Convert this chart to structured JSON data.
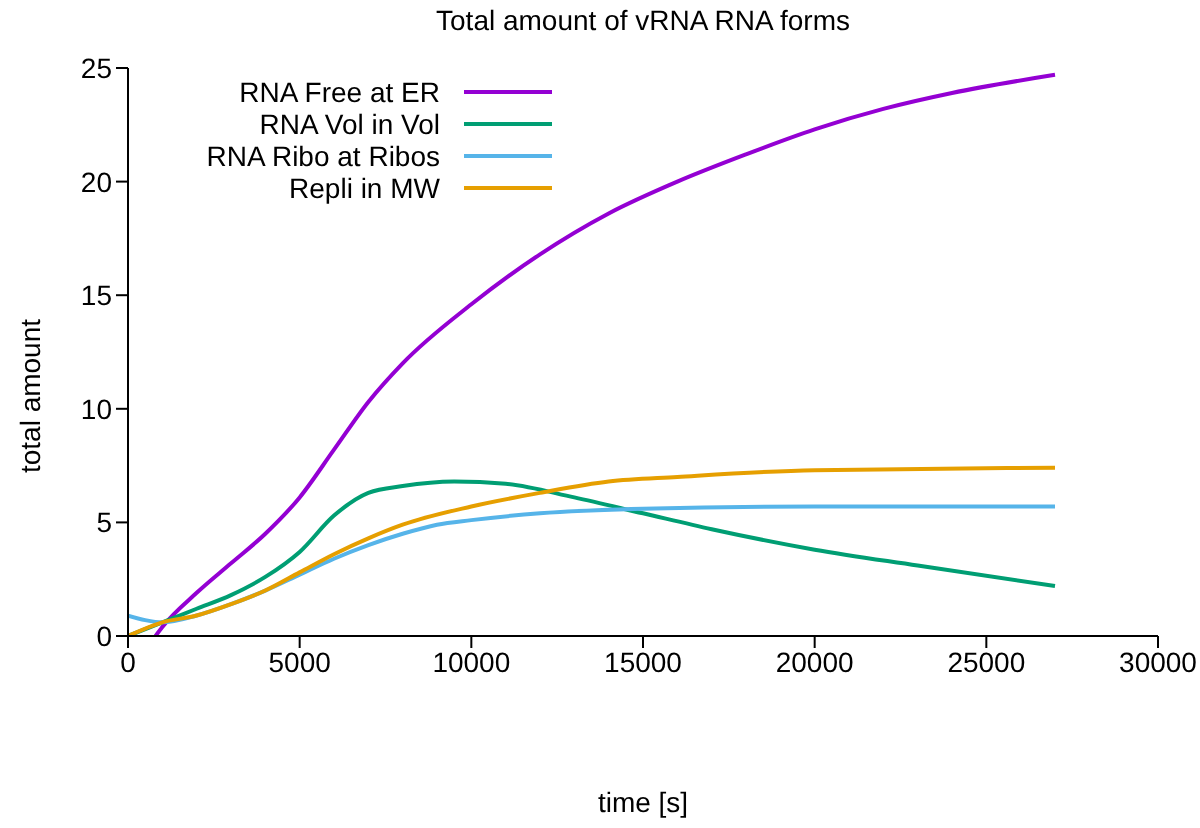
{
  "chart_data": {
    "type": "line",
    "title": "Total amount of vRNA RNA forms",
    "xlabel": "time [s]",
    "ylabel": "total amount",
    "xlim": [
      0,
      30000
    ],
    "xticks": [
      0,
      5000,
      10000,
      15000,
      20000,
      25000,
      30000
    ],
    "ylim": [
      0,
      25
    ],
    "yticks": [
      0,
      5,
      10,
      15,
      20,
      25
    ],
    "grid": false,
    "legend": "top left",
    "marker": "none",
    "line_style": "solid",
    "series": [
      {
        "name": "RNA Free at ER",
        "color": "#9400d3",
        "x": [
          800,
          1000,
          2000,
          3000,
          4000,
          5000,
          6000,
          7000,
          8000,
          10000,
          12000,
          14000,
          16000,
          18000,
          20000,
          22000,
          24000,
          27000
        ],
        "values": [
          0,
          0.4,
          1.9,
          3.2,
          4.5,
          6.1,
          8.2,
          10.3,
          12.0,
          14.6,
          16.8,
          18.6,
          20.0,
          21.2,
          22.3,
          23.2,
          23.9,
          24.7
        ]
      },
      {
        "name": "RNA Vol in Vol",
        "color": "#009e73",
        "x": [
          0,
          1000,
          2000,
          3000,
          4000,
          5000,
          6000,
          7000,
          8000,
          9500,
          11000,
          13000,
          15000,
          17000,
          20000,
          23000,
          27000
        ],
        "values": [
          0,
          0.6,
          1.2,
          1.8,
          2.6,
          3.7,
          5.3,
          6.3,
          6.6,
          6.8,
          6.7,
          6.1,
          5.4,
          4.7,
          3.8,
          3.1,
          2.2
        ]
      },
      {
        "name": "RNA Ribo at Ribos",
        "color": "#56b4e9",
        "x": [
          0,
          500,
          1000,
          2000,
          3000,
          4000,
          5000,
          6000,
          7000,
          8000,
          9000,
          10000,
          12000,
          15000,
          20000,
          27000
        ],
        "values": [
          0.9,
          0.7,
          0.6,
          0.9,
          1.4,
          2.0,
          2.7,
          3.4,
          4.0,
          4.5,
          4.9,
          5.1,
          5.4,
          5.6,
          5.7,
          5.7
        ]
      },
      {
        "name": "Repli in MW",
        "color": "#e69f00",
        "x": [
          0,
          1000,
          2000,
          3000,
          4000,
          5000,
          6000,
          7000,
          8000,
          10000,
          12000,
          14000,
          16000,
          20000,
          27000
        ],
        "values": [
          0,
          0.6,
          0.9,
          1.4,
          2.0,
          2.8,
          3.6,
          4.3,
          4.9,
          5.7,
          6.3,
          6.8,
          7.0,
          7.3,
          7.4
        ]
      }
    ]
  }
}
